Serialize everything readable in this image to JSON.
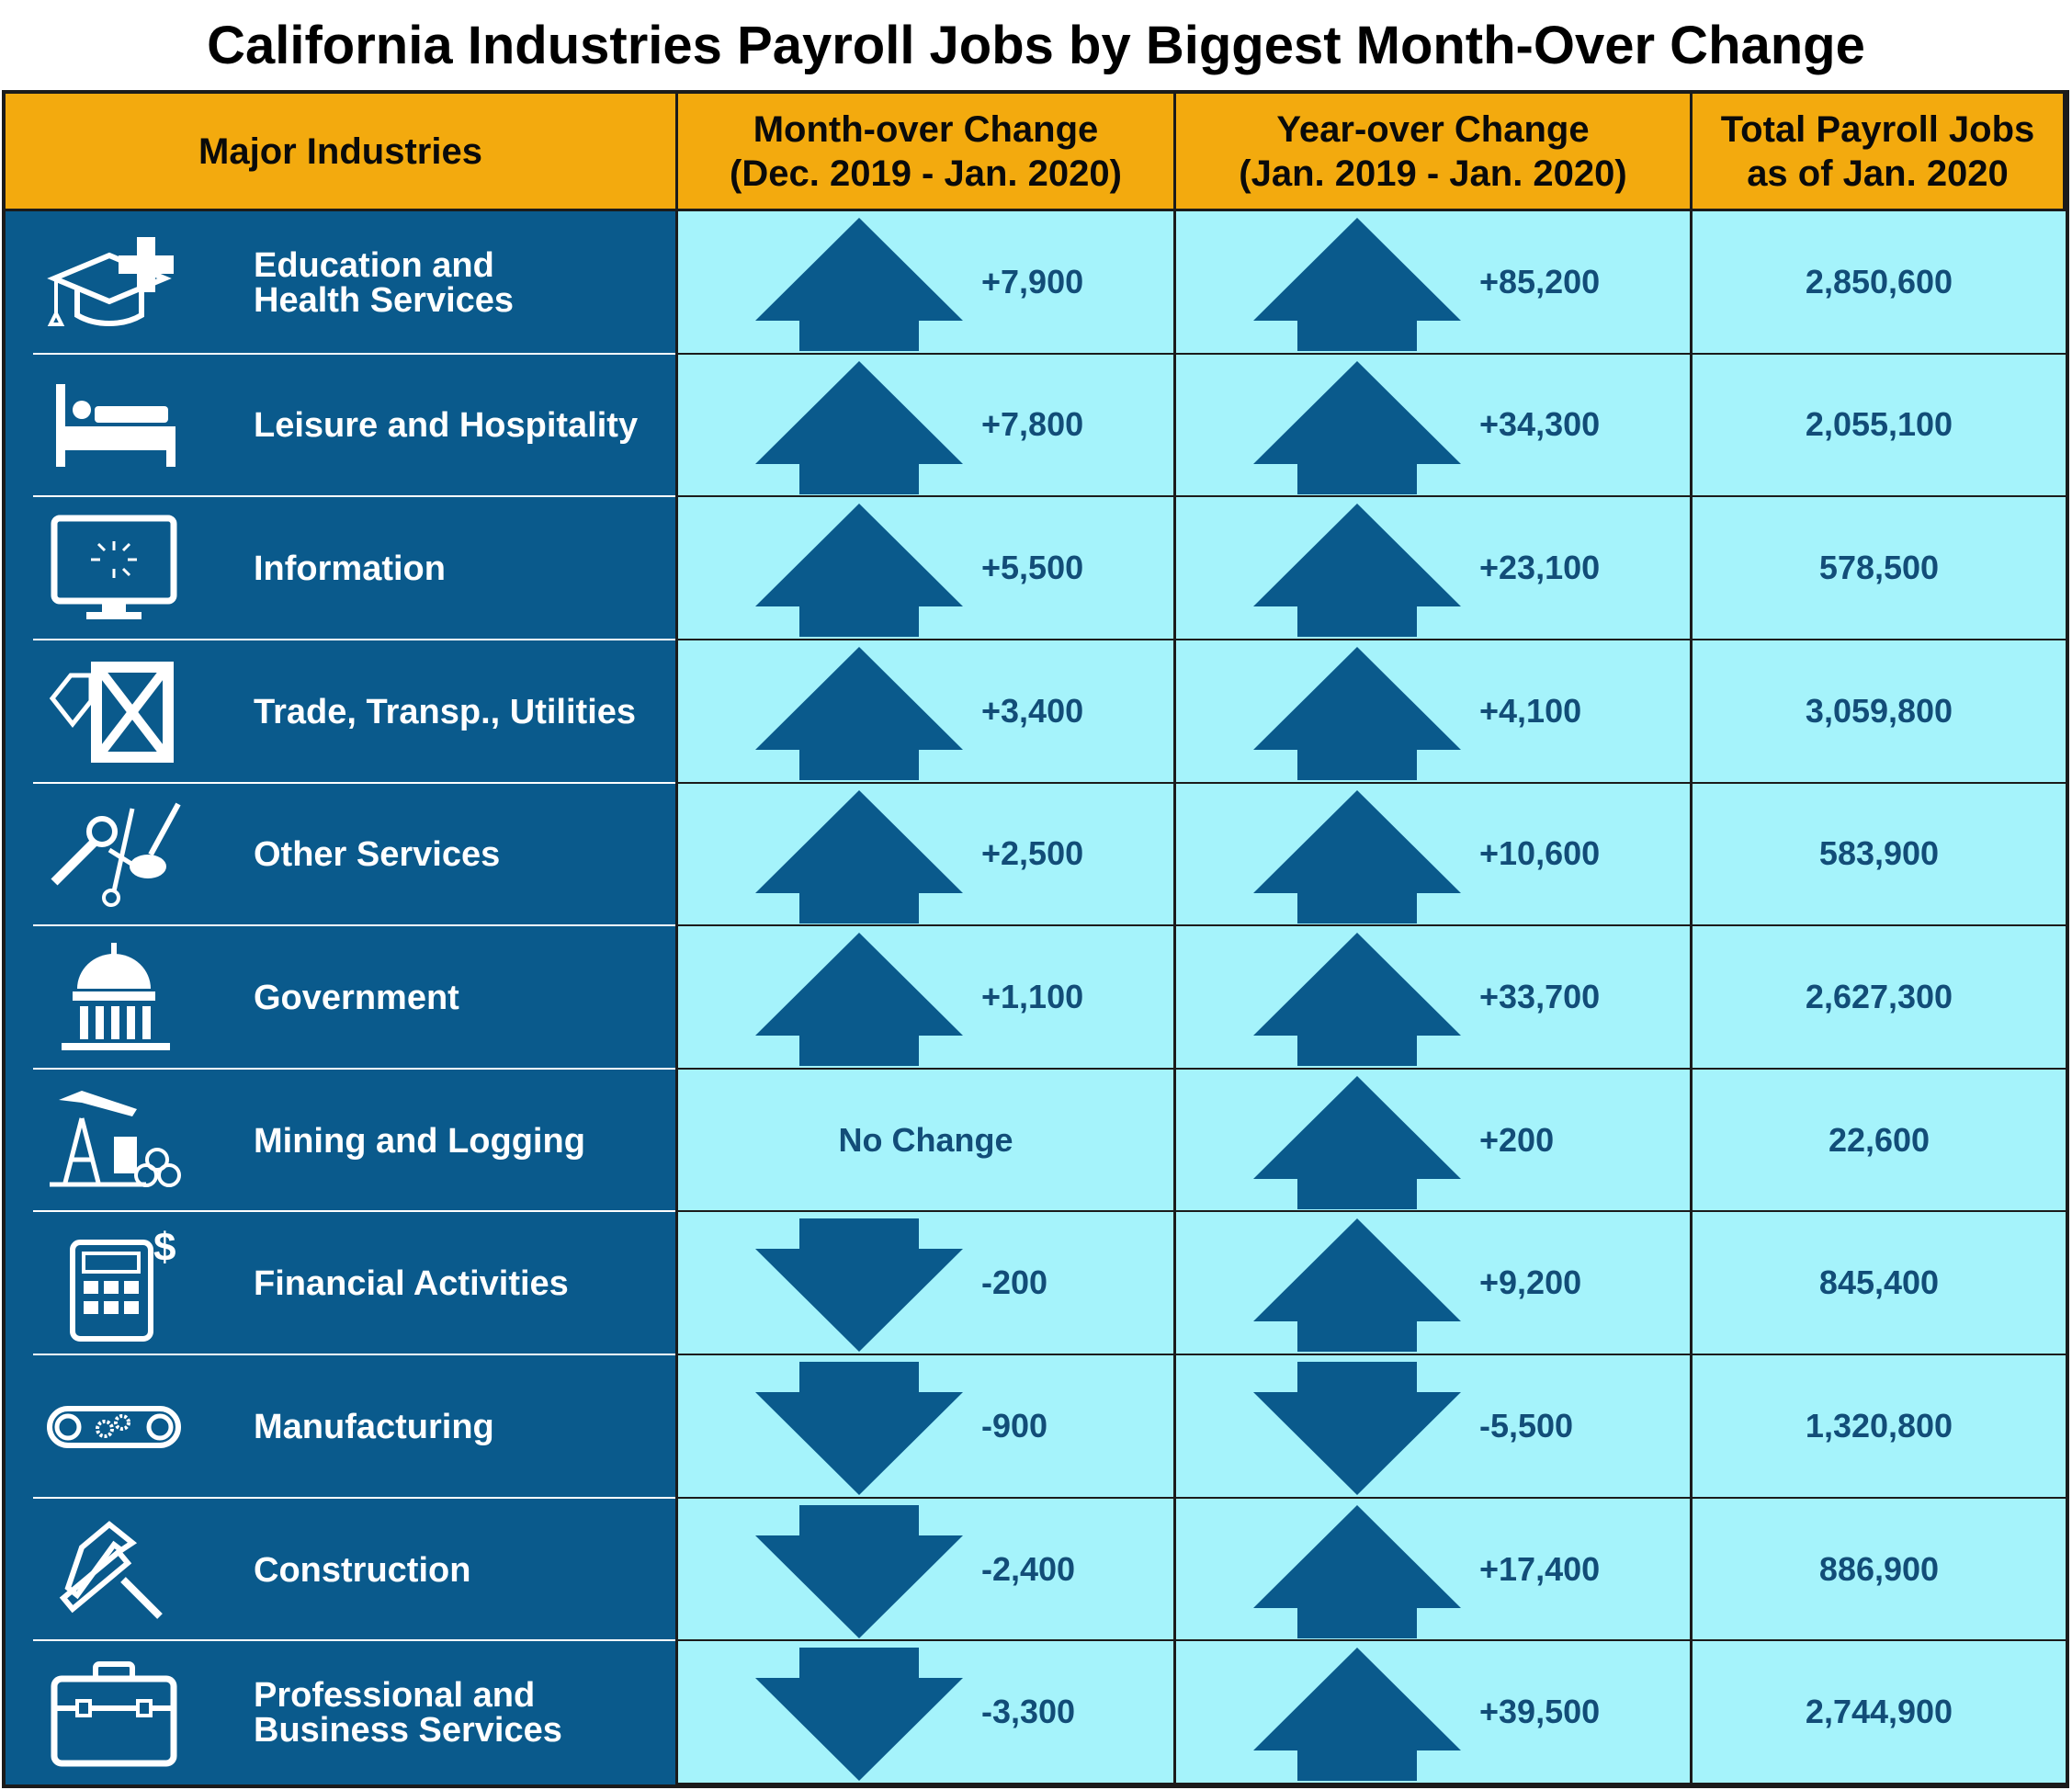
{
  "title": "California Industries Payroll Jobs by Biggest Month-Over Change",
  "headers": {
    "industry": "Major Industries",
    "month": "Month-over Change\n(Dec. 2019 - Jan. 2020)",
    "year": "Year-over Change\n(Jan. 2019 - Jan. 2020)",
    "total": "Total Payroll Jobs\nas of Jan. 2020"
  },
  "colors": {
    "header_bg": "#f3aa0e",
    "industry_bg": "#0a5a8c",
    "data_bg": "#a5f3fb",
    "arrow": "#0a5a8c",
    "value_text": "#124d78"
  },
  "rows": [
    {
      "name": "Education and\nHealth Services",
      "icon": "graduation-medical-icon",
      "month": "+7,900",
      "month_dir": "up",
      "year": "+85,200",
      "year_dir": "up",
      "total": "2,850,600"
    },
    {
      "name": "Leisure and Hospitality",
      "icon": "hotel-bed-icon",
      "month": "+7,800",
      "month_dir": "up",
      "year": "+34,300",
      "year_dir": "up",
      "total": "2,055,100"
    },
    {
      "name": "Information",
      "icon": "computer-monitor-icon",
      "month": "+5,500",
      "month_dir": "up",
      "year": "+23,100",
      "year_dir": "up",
      "total": "578,500"
    },
    {
      "name": "Trade, Transp., Utilities",
      "icon": "crate-tag-icon",
      "month": "+3,400",
      "month_dir": "up",
      "year": "+4,100",
      "year_dir": "up",
      "total": "3,059,800"
    },
    {
      "name": "Other Services",
      "icon": "tools-scissors-icon",
      "month": "+2,500",
      "month_dir": "up",
      "year": "+10,600",
      "year_dir": "up",
      "total": "583,900"
    },
    {
      "name": "Government",
      "icon": "capitol-building-icon",
      "month": "+1,100",
      "month_dir": "up",
      "year": "+33,700",
      "year_dir": "up",
      "total": "2,627,300"
    },
    {
      "name": "Mining and Logging",
      "icon": "oil-pump-logs-icon",
      "month": "No Change",
      "month_dir": "none",
      "year": "+200",
      "year_dir": "up",
      "total": "22,600"
    },
    {
      "name": "Financial Activities",
      "icon": "calculator-dollar-icon",
      "month": "-200",
      "month_dir": "down",
      "year": "+9,200",
      "year_dir": "up",
      "total": "845,400"
    },
    {
      "name": "Manufacturing",
      "icon": "conveyor-gears-icon",
      "month": "-900",
      "month_dir": "down",
      "year": "-5,500",
      "year_dir": "down",
      "total": "1,320,800"
    },
    {
      "name": "Construction",
      "icon": "hammer-saw-icon",
      "month": "-2,400",
      "month_dir": "down",
      "year": "+17,400",
      "year_dir": "up",
      "total": "886,900"
    },
    {
      "name": "Professional and\nBusiness Services",
      "icon": "briefcase-icon",
      "month": "-3,300",
      "month_dir": "down",
      "year": "+39,500",
      "year_dir": "up",
      "total": "2,744,900"
    }
  ]
}
